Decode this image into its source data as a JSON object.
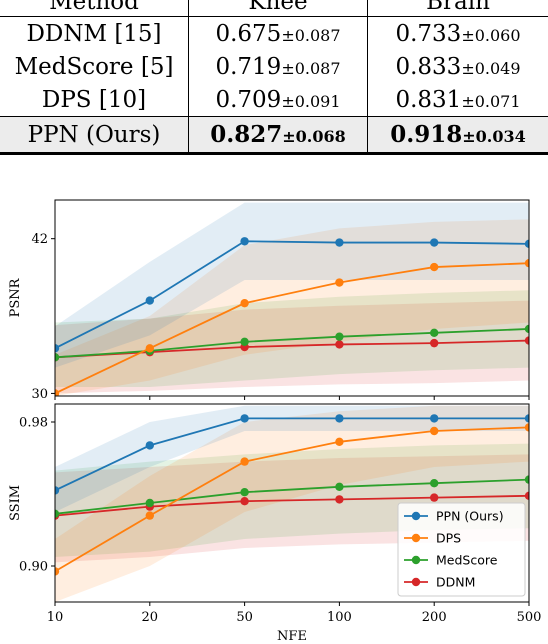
{
  "table": {
    "columns": [
      "Method",
      "Knee",
      "Brain"
    ],
    "rows": [
      {
        "method": "DDNM [15]",
        "knee_mean": "0.675",
        "knee_std": "±0.087",
        "brain_mean": "0.733",
        "brain_std": "±0.060"
      },
      {
        "method": "MedScore [5]",
        "knee_mean": "0.719",
        "knee_std": "±0.087",
        "brain_mean": "0.833",
        "brain_std": "±0.049"
      },
      {
        "method": "DPS [10]",
        "knee_mean": "0.709",
        "knee_std": "±0.091",
        "brain_mean": "0.831",
        "brain_std": "±0.071"
      },
      {
        "method": "PPN (Ours)",
        "knee_mean": "0.827",
        "knee_std": "±0.068",
        "brain_mean": "0.918",
        "brain_std": "±0.034"
      }
    ]
  },
  "chart_data": [
    {
      "type": "line",
      "ylabel": "PSNR",
      "xlabel": "",
      "x": [
        "10",
        "20",
        "50",
        "100",
        "200",
        "500"
      ],
      "ylim": [
        29.8,
        45.0
      ],
      "yticks": [
        "42",
        "30"
      ],
      "grid": false,
      "series": [
        {
          "name": "PPN (Ours)",
          "color": "#1f77b4",
          "values": [
            33.5,
            37.2,
            41.8,
            41.7,
            41.7,
            41.6
          ],
          "band": [
            [
              32.0,
              35.2
            ],
            [
              34.5,
              40.2
            ],
            [
              38.8,
              44.8
            ],
            [
              38.8,
              44.8
            ],
            [
              38.8,
              44.8
            ],
            [
              38.8,
              44.8
            ]
          ]
        },
        {
          "name": "DPS",
          "color": "#ff7f0e",
          "values": [
            30.0,
            33.5,
            37.0,
            38.6,
            39.8,
            40.1
          ],
          "band": [
            [
              29.8,
              33.0
            ],
            [
              31.0,
              36.0
            ],
            [
              33.0,
              41.5
            ],
            [
              34.0,
              42.8
            ],
            [
              35.0,
              43.3
            ],
            [
              35.5,
              43.5
            ]
          ]
        },
        {
          "name": "MedScore",
          "color": "#2ca02c",
          "values": [
            32.8,
            33.3,
            34.0,
            34.4,
            34.7,
            35.0
          ],
          "band": [
            [
              30.5,
              35.5
            ],
            [
              30.5,
              35.8
            ],
            [
              31.0,
              37.0
            ],
            [
              31.5,
              37.5
            ],
            [
              31.8,
              37.8
            ],
            [
              32.0,
              38.0
            ]
          ]
        },
        {
          "name": "DDNM",
          "color": "#d62728",
          "values": [
            32.8,
            33.2,
            33.6,
            33.8,
            33.9,
            34.1
          ],
          "band": [
            [
              30.0,
              35.3
            ],
            [
              30.2,
              35.8
            ],
            [
              30.5,
              36.5
            ],
            [
              30.7,
              36.8
            ],
            [
              30.8,
              37.0
            ],
            [
              31.0,
              37.2
            ]
          ]
        }
      ]
    },
    {
      "type": "line",
      "ylabel": "SSIM",
      "xlabel": "NFE",
      "x": [
        "10",
        "20",
        "50",
        "100",
        "200",
        "500"
      ],
      "ylim": [
        0.88,
        0.99
      ],
      "yticks": [
        "0.98",
        "0.90"
      ],
      "grid": false,
      "legend": "bottom-right",
      "series": [
        {
          "name": "PPN (Ours)",
          "color": "#1f77b4",
          "values": [
            0.942,
            0.967,
            0.982,
            0.982,
            0.982,
            0.982
          ],
          "band": [
            [
              0.93,
              0.955
            ],
            [
              0.955,
              0.98
            ],
            [
              0.975,
              0.989
            ],
            [
              0.975,
              0.989
            ],
            [
              0.975,
              0.989
            ],
            [
              0.975,
              0.989
            ]
          ]
        },
        {
          "name": "DPS",
          "color": "#ff7f0e",
          "values": [
            0.897,
            0.928,
            0.958,
            0.969,
            0.975,
            0.977
          ],
          "band": [
            [
              0.88,
              0.915
            ],
            [
              0.9,
              0.95
            ],
            [
              0.93,
              0.98
            ],
            [
              0.945,
              0.986
            ],
            [
              0.955,
              0.989
            ],
            [
              0.958,
              0.989
            ]
          ]
        },
        {
          "name": "MedScore",
          "color": "#2ca02c",
          "values": [
            0.929,
            0.935,
            0.941,
            0.944,
            0.946,
            0.948
          ],
          "band": [
            [
              0.905,
              0.953
            ],
            [
              0.908,
              0.958
            ],
            [
              0.915,
              0.962
            ],
            [
              0.918,
              0.965
            ],
            [
              0.92,
              0.967
            ],
            [
              0.921,
              0.968
            ]
          ]
        },
        {
          "name": "DDNM",
          "color": "#d62728",
          "values": [
            0.928,
            0.933,
            0.936,
            0.937,
            0.938,
            0.939
          ],
          "band": [
            [
              0.902,
              0.952
            ],
            [
              0.905,
              0.955
            ],
            [
              0.91,
              0.958
            ],
            [
              0.912,
              0.96
            ],
            [
              0.913,
              0.961
            ],
            [
              0.914,
              0.962
            ]
          ]
        }
      ]
    }
  ]
}
